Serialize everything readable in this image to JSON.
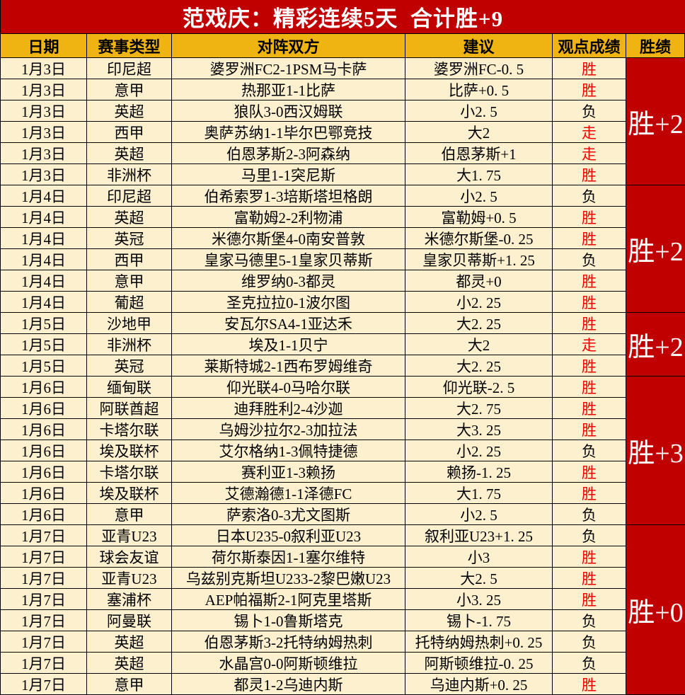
{
  "banner": {
    "title": "范戏庆：精彩连续5天  合计胜+9"
  },
  "colors": {
    "banner_bg": "#c00000",
    "header_bg": "#efb411",
    "cell_bg": "#fdf0ce",
    "summary_bg": "#c00000",
    "win_text": "#f20000",
    "lose_text": "#000000",
    "banner_text": "#ffffff"
  },
  "table": {
    "headers": [
      "日期",
      "赛事类型",
      "对阵双方",
      "建议",
      "观点成绩",
      "胜绩"
    ],
    "groups": [
      {
        "summary": "胜+2",
        "rows": [
          {
            "date": "1月3日",
            "league": "印尼超",
            "match": "婆罗洲FC2-1PSM马卡萨",
            "advice": "婆罗洲FC-0. 5",
            "result": "胜",
            "result_color": "red"
          },
          {
            "date": "1月3日",
            "league": "意甲",
            "match": "热那亚1-1比萨",
            "advice": "比萨+0. 5",
            "result": "胜",
            "result_color": "red"
          },
          {
            "date": "1月3日",
            "league": "英超",
            "match": "狼队3-0西汉姆联",
            "advice": "小2. 5",
            "result": "负",
            "result_color": "black"
          },
          {
            "date": "1月3日",
            "league": "西甲",
            "match": "奥萨苏纳1-1毕尔巴鄂竞技",
            "advice": "大2",
            "result": "走",
            "result_color": "red"
          },
          {
            "date": "1月3日",
            "league": "英超",
            "match": "伯恩茅斯2-3阿森纳",
            "advice": "伯恩茅斯+1",
            "result": "走",
            "result_color": "red"
          },
          {
            "date": "1月3日",
            "league": "非洲杯",
            "match": "马里1-1突尼斯",
            "advice": "大1. 75",
            "result": "胜",
            "result_color": "red"
          }
        ]
      },
      {
        "summary": "胜+2",
        "rows": [
          {
            "date": "1月4日",
            "league": "印尼超",
            "match": "伯希索罗1-3培斯塔坦格朗",
            "advice": "小2. 5",
            "result": "负",
            "result_color": "black"
          },
          {
            "date": "1月4日",
            "league": "英超",
            "match": "富勒姆2-2利物浦",
            "advice": "富勒姆+0. 5",
            "result": "胜",
            "result_color": "red"
          },
          {
            "date": "1月4日",
            "league": "英冠",
            "match": "米德尔斯堡4-0南安普敦",
            "advice": "米德尔斯堡-0. 25",
            "result": "胜",
            "result_color": "red"
          },
          {
            "date": "1月4日",
            "league": "西甲",
            "match": "皇家马德里5-1皇家贝蒂斯",
            "advice": "皇家贝蒂斯+1. 25",
            "result": "负",
            "result_color": "black"
          },
          {
            "date": "1月4日",
            "league": "意甲",
            "match": "维罗纳0-3都灵",
            "advice": "都灵+0",
            "result": "胜",
            "result_color": "red"
          },
          {
            "date": "1月4日",
            "league": "葡超",
            "match": "圣克拉拉0-1波尔图",
            "advice": "小2. 25",
            "result": "胜",
            "result_color": "red"
          }
        ]
      },
      {
        "summary": "胜+2",
        "rows": [
          {
            "date": "1月5日",
            "league": "沙地甲",
            "match": "安瓦尔SA4-1亚达禾",
            "advice": "大2. 25",
            "result": "胜",
            "result_color": "red"
          },
          {
            "date": "1月5日",
            "league": "非洲杯",
            "match": "埃及1-1贝宁",
            "advice": "大2",
            "result": "走",
            "result_color": "red"
          },
          {
            "date": "1月5日",
            "league": "英冠",
            "match": "莱斯特城2-1西布罗姆维奇",
            "advice": "大2. 25",
            "result": "胜",
            "result_color": "red"
          }
        ]
      },
      {
        "summary": "胜+3",
        "rows": [
          {
            "date": "1月6日",
            "league": "缅甸联",
            "match": "仰光联4-0马哈尔联",
            "advice": "仰光联-2. 5",
            "result": "胜",
            "result_color": "red"
          },
          {
            "date": "1月6日",
            "league": "阿联酋超",
            "match": "迪拜胜利2-4沙迦",
            "advice": "大2. 75",
            "result": "胜",
            "result_color": "red"
          },
          {
            "date": "1月6日",
            "league": "卡塔尔联",
            "match": "乌姆沙拉尔2-3加拉法",
            "advice": "大3. 25",
            "result": "胜",
            "result_color": "red"
          },
          {
            "date": "1月6日",
            "league": "埃及联杯",
            "match": "艾尔格纳1-3佩特捷德",
            "advice": "小2. 25",
            "result": "负",
            "result_color": "black"
          },
          {
            "date": "1月6日",
            "league": "卡塔尔联",
            "match": "赛利亚1-3赖扬",
            "advice": "赖扬-1. 25",
            "result": "胜",
            "result_color": "red"
          },
          {
            "date": "1月6日",
            "league": "埃及联杯",
            "match": "艾德瀚德1-1泽德FC",
            "advice": "大1. 75",
            "result": "胜",
            "result_color": "red"
          },
          {
            "date": "1月6日",
            "league": "意甲",
            "match": "萨索洛0-3尤文图斯",
            "advice": "小2. 5",
            "result": "负",
            "result_color": "black"
          }
        ]
      },
      {
        "summary": "胜+0",
        "rows": [
          {
            "date": "1月7日",
            "league": "亚青U23",
            "match": "日本U235-0叙利亚U23",
            "advice": "叙利亚U23+1. 25",
            "result": "负",
            "result_color": "black"
          },
          {
            "date": "1月7日",
            "league": "球会友谊",
            "match": "荷尔斯泰因1-1塞尔维特",
            "advice": "小3",
            "result": "胜",
            "result_color": "red"
          },
          {
            "date": "1月7日",
            "league": "亚青U23",
            "match": "乌兹别克斯坦U233-2黎巴嫩U23",
            "advice": "大2. 5",
            "result": "胜",
            "result_color": "red"
          },
          {
            "date": "1月7日",
            "league": "塞浦杯",
            "match": "AEP帕福斯2-1阿克里塔斯",
            "advice": "小3. 25",
            "result": "胜",
            "result_color": "red"
          },
          {
            "date": "1月7日",
            "league": "阿曼联",
            "match": "锡卜1-0鲁斯塔克",
            "advice": "锡卜-1. 75",
            "result": "负",
            "result_color": "black"
          },
          {
            "date": "1月7日",
            "league": "英超",
            "match": "伯恩茅斯3-2托特纳姆热刺",
            "advice": "托特纳姆热刺+0. 25",
            "result": "负",
            "result_color": "black"
          },
          {
            "date": "1月7日",
            "league": "英超",
            "match": "水晶宫0-0阿斯顿维拉",
            "advice": "阿斯顿维拉-0. 25",
            "result": "负",
            "result_color": "black"
          },
          {
            "date": "1月7日",
            "league": "意甲",
            "match": "都灵1-2乌迪内斯",
            "advice": "乌迪内斯+0. 25",
            "result": "胜",
            "result_color": "red"
          }
        ]
      }
    ]
  }
}
